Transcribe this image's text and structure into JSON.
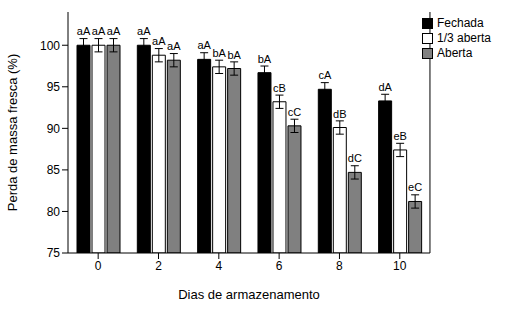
{
  "chart_data": {
    "type": "bar",
    "x_label": "Dias de armazenamento",
    "y_label": "Perda de massa fresca (%)",
    "categories": [
      0,
      2,
      4,
      6,
      8,
      10
    ],
    "series": [
      {
        "name": "Fechada",
        "color": "#000000",
        "values": [
          100,
          100,
          98.3,
          96.7,
          94.7,
          93.3
        ],
        "errors": [
          0.8,
          0.8,
          0.8,
          0.8,
          0.8,
          0.8
        ],
        "significance": [
          "aA",
          "aA",
          "aA",
          "bA",
          "cA",
          "dA"
        ]
      },
      {
        "name": "1/3 aberta",
        "color": "#ffffff",
        "values": [
          100,
          98.8,
          97.4,
          93.2,
          90.1,
          87.4
        ],
        "errors": [
          0.8,
          0.8,
          0.8,
          0.8,
          0.8,
          0.8
        ],
        "significance": [
          "aA",
          "aA",
          "bA",
          "cB",
          "dB",
          "eB"
        ]
      },
      {
        "name": "Aberta",
        "color": "#808080",
        "values": [
          100,
          98.2,
          97.2,
          90.3,
          84.7,
          81.2
        ],
        "errors": [
          0.8,
          0.8,
          0.8,
          0.8,
          0.8,
          0.8
        ],
        "significance": [
          "aA",
          "aA",
          "bA",
          "cC",
          "dC",
          "eC"
        ]
      }
    ],
    "ylim": [
      75,
      104
    ],
    "yticks": [
      75,
      80,
      85,
      90,
      95,
      100
    ],
    "grid": false,
    "legend": "upper right"
  }
}
